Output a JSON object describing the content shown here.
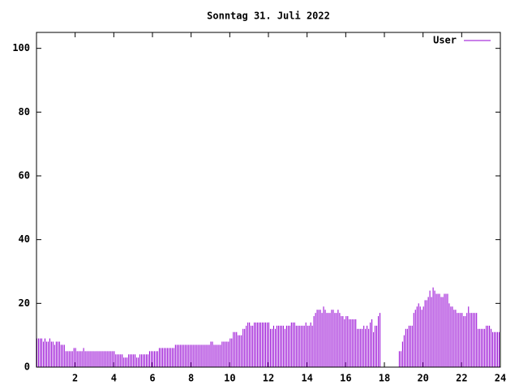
{
  "chart_data": {
    "type": "impulse",
    "title": "Sonntag 31. Juli 2022",
    "xlim": [
      0,
      24
    ],
    "xticks": [
      2,
      4,
      6,
      8,
      10,
      12,
      14,
      16,
      18,
      20,
      22,
      24
    ],
    "ylim": [
      0,
      105
    ],
    "yticks": [
      0,
      20,
      40,
      60,
      80,
      100
    ],
    "grid": false,
    "legend": "top-right",
    "x": [
      0,
      0.083,
      0.167,
      0.25,
      0.333,
      0.417,
      0.5,
      0.583,
      0.667,
      0.75,
      0.833,
      0.917,
      1,
      1.083,
      1.167,
      1.25,
      1.333,
      1.417,
      1.5,
      1.583,
      1.667,
      1.75,
      1.833,
      1.917,
      2,
      2.083,
      2.167,
      2.25,
      2.333,
      2.417,
      2.5,
      2.583,
      2.667,
      2.75,
      2.833,
      2.917,
      3,
      3.083,
      3.167,
      3.25,
      3.333,
      3.417,
      3.5,
      3.583,
      3.667,
      3.75,
      3.833,
      3.917,
      4,
      4.083,
      4.167,
      4.25,
      4.333,
      4.417,
      4.5,
      4.583,
      4.667,
      4.75,
      4.833,
      4.917,
      5,
      5.083,
      5.167,
      5.25,
      5.333,
      5.417,
      5.5,
      5.583,
      5.667,
      5.75,
      5.833,
      5.917,
      6,
      6.083,
      6.167,
      6.25,
      6.333,
      6.417,
      6.5,
      6.583,
      6.667,
      6.75,
      6.833,
      6.917,
      7,
      7.083,
      7.167,
      7.25,
      7.333,
      7.417,
      7.5,
      7.583,
      7.667,
      7.75,
      7.833,
      7.917,
      8,
      8.083,
      8.167,
      8.25,
      8.333,
      8.417,
      8.5,
      8.583,
      8.667,
      8.75,
      8.833,
      8.917,
      9,
      9.083,
      9.167,
      9.25,
      9.333,
      9.417,
      9.5,
      9.583,
      9.667,
      9.75,
      9.833,
      9.917,
      10,
      10.083,
      10.167,
      10.25,
      10.333,
      10.417,
      10.5,
      10.583,
      10.667,
      10.75,
      10.833,
      10.917,
      11,
      11.083,
      11.167,
      11.25,
      11.333,
      11.417,
      11.5,
      11.583,
      11.667,
      11.75,
      11.833,
      11.917,
      12,
      12.083,
      12.167,
      12.25,
      12.333,
      12.417,
      12.5,
      12.583,
      12.667,
      12.75,
      12.833,
      12.917,
      13,
      13.083,
      13.167,
      13.25,
      13.333,
      13.417,
      13.5,
      13.583,
      13.667,
      13.75,
      13.833,
      13.917,
      14,
      14.083,
      14.167,
      14.25,
      14.333,
      14.417,
      14.5,
      14.583,
      14.667,
      14.75,
      14.833,
      14.917,
      15,
      15.083,
      15.167,
      15.25,
      15.333,
      15.417,
      15.5,
      15.583,
      15.667,
      15.75,
      15.833,
      15.917,
      16,
      16.083,
      16.167,
      16.25,
      16.333,
      16.417,
      16.5,
      16.583,
      16.667,
      16.75,
      16.833,
      16.917,
      17,
      17.083,
      17.167,
      17.25,
      17.333,
      17.417,
      17.5,
      17.583,
      17.667,
      17.75,
      17.833,
      17.917,
      18,
      18.083,
      18.167,
      18.25,
      18.333,
      18.417,
      18.5,
      18.583,
      18.667,
      18.75,
      18.833,
      18.917,
      19,
      19.083,
      19.167,
      19.25,
      19.333,
      19.417,
      19.5,
      19.583,
      19.667,
      19.75,
      19.833,
      19.917,
      20,
      20.083,
      20.167,
      20.25,
      20.333,
      20.417,
      20.5,
      20.583,
      20.667,
      20.75,
      20.833,
      20.917,
      21,
      21.083,
      21.167,
      21.25,
      21.333,
      21.417,
      21.5,
      21.583,
      21.667,
      21.75,
      21.833,
      21.917,
      22,
      22.083,
      22.167,
      22.25,
      22.333,
      22.417,
      22.5,
      22.583,
      22.667,
      22.75,
      22.833,
      22.917,
      23,
      23.083,
      23.167,
      23.25,
      23.333,
      23.417,
      23.5,
      23.583,
      23.667,
      23.75,
      23.833,
      23.917
    ],
    "series": [
      {
        "name": "User",
        "color": "#9400d3",
        "values": [
          9,
          9,
          9,
          9,
          8,
          9,
          8,
          8,
          9,
          8,
          8,
          7,
          8,
          8,
          8,
          7,
          7,
          7,
          5,
          5,
          5,
          5,
          5,
          6,
          6,
          5,
          5,
          5,
          5,
          6,
          5,
          5,
          5,
          5,
          5,
          5,
          5,
          5,
          5,
          5,
          5,
          5,
          5,
          5,
          5,
          5,
          5,
          5,
          5,
          4,
          4,
          4,
          4,
          4,
          3,
          3,
          3,
          4,
          4,
          4,
          4,
          4,
          3,
          3,
          4,
          4,
          4,
          4,
          4,
          4,
          5,
          5,
          5,
          5,
          5,
          5,
          6,
          6,
          6,
          6,
          6,
          6,
          6,
          6,
          6,
          6,
          7,
          7,
          7,
          7,
          7,
          7,
          7,
          7,
          7,
          7,
          7,
          7,
          7,
          7,
          7,
          7,
          7,
          7,
          7,
          7,
          7,
          7,
          8,
          8,
          7,
          7,
          7,
          7,
          7,
          8,
          8,
          8,
          8,
          8,
          9,
          9,
          11,
          11,
          11,
          10,
          10,
          10,
          12,
          12,
          13,
          14,
          14,
          13,
          13,
          14,
          14,
          14,
          14,
          14,
          14,
          14,
          14,
          14,
          14,
          12,
          12,
          13,
          12,
          13,
          13,
          13,
          13,
          13,
          12,
          13,
          13,
          13,
          14,
          14,
          14,
          13,
          13,
          13,
          13,
          13,
          13,
          14,
          13,
          13,
          14,
          13,
          16,
          17,
          18,
          18,
          18,
          17,
          19,
          18,
          17,
          17,
          17,
          18,
          18,
          17,
          17,
          18,
          17,
          16,
          16,
          15,
          16,
          16,
          15,
          15,
          15,
          15,
          15,
          12,
          12,
          12,
          12,
          13,
          12,
          13,
          12,
          14,
          15,
          11,
          13,
          13,
          16,
          17,
          0,
          0,
          0,
          0,
          0,
          0,
          0,
          0,
          0,
          0,
          0,
          5,
          5,
          8,
          10,
          12,
          12,
          13,
          13,
          13,
          17,
          18,
          19,
          20,
          19,
          18,
          19,
          21,
          21,
          22,
          24,
          22,
          25,
          24,
          23,
          23,
          23,
          22,
          22,
          23,
          23,
          23,
          20,
          19,
          19,
          18,
          18,
          17,
          17,
          17,
          17,
          16,
          16,
          17,
          19,
          17,
          17,
          17,
          17,
          17,
          12,
          12,
          12,
          12,
          12,
          13,
          13,
          13,
          12,
          11,
          11,
          11,
          11,
          11
        ]
      }
    ]
  }
}
